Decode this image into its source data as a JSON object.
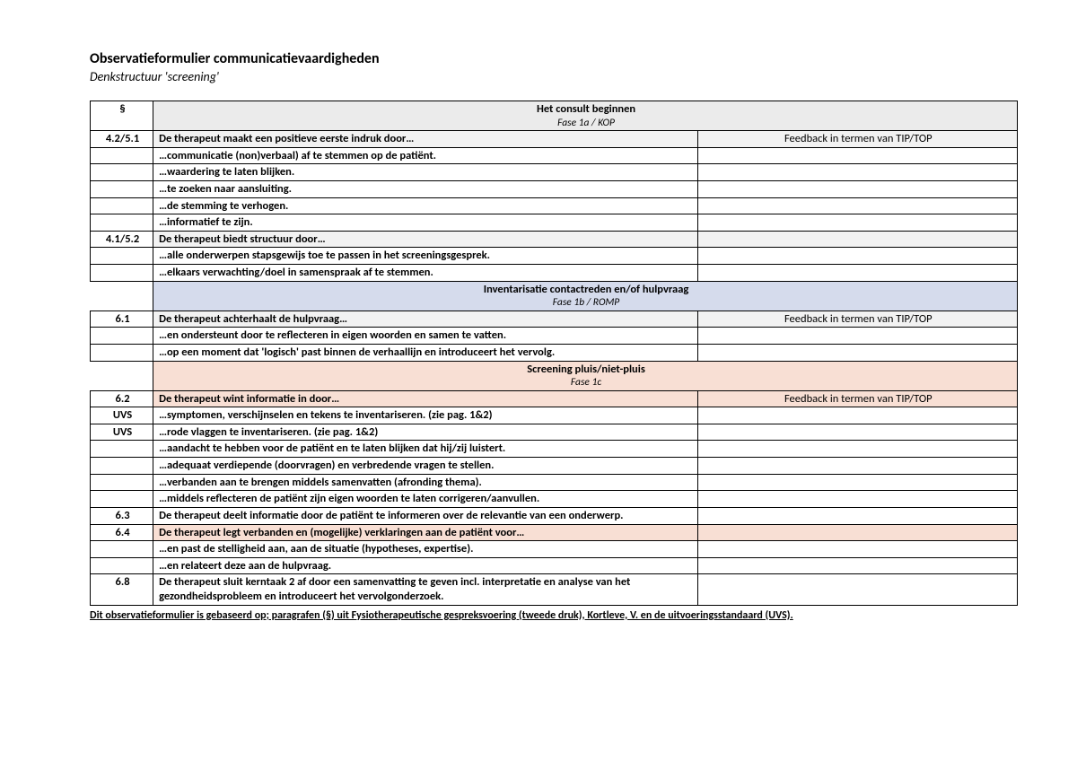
{
  "header": {
    "title": "Observatieformulier communicatievaardigheden",
    "subtitle": "Denkstructuur 'screening'"
  },
  "symbol": "§",
  "colors": {
    "section1_bg": "#ebebeb",
    "section2_bg": "#d5dbec",
    "section3_bg": "#f8dfd4",
    "row_hl_bg": "#f8dfd4",
    "grey_bg": "#f2f2f2"
  },
  "fb_header": "Feedback in termen van TIP/TOP",
  "sections": [
    {
      "title": "Het consult beginnen",
      "sub": "Fase 1a / KOP"
    },
    {
      "title": "Inventarisatie contactreden en/of hulpvraag",
      "sub": "Fase 1b / ROMP"
    },
    {
      "title": "Screening pluis/niet-pluis",
      "sub": "Fase 1c"
    }
  ],
  "rows": {
    "r1": {
      "code": "4.2/5.1",
      "text": "De therapeut maakt een positieve eerste indruk door…"
    },
    "r2": {
      "text": "…communicatie (non)verbaal) af te stemmen op de patiënt."
    },
    "r3": {
      "text": "…waardering te laten blijken."
    },
    "r4": {
      "text": "…te zoeken naar aansluiting."
    },
    "r5": {
      "text": "…de stemming te verhogen."
    },
    "r6": {
      "text": "…informatief te zijn."
    },
    "r7": {
      "code": "4.1/5.2",
      "text": "De therapeut biedt structuur door…"
    },
    "r8": {
      "text": "…alle onderwerpen stapsgewijs toe te passen in het screeningsgesprek."
    },
    "r9": {
      "text": "…elkaars verwachting/doel in samenspraak af te stemmen."
    },
    "r10": {
      "code": "6.1",
      "text": "De therapeut achterhaalt de hulpvraag…"
    },
    "r11": {
      "text": "…en ondersteunt door te reflecteren in eigen woorden en samen te vatten."
    },
    "r12": {
      "text": "…op een moment dat 'logisch' past binnen de verhaallijn en introduceert het vervolg."
    },
    "r13": {
      "code": "6.2",
      "text": "De therapeut wint informatie in door…"
    },
    "r14": {
      "code": "UVS",
      "text": "…symptomen, verschijnselen en tekens te inventariseren. (zie pag. 1&2)"
    },
    "r15": {
      "code": "UVS",
      "text": "…rode vlaggen te inventariseren. (zie pag. 1&2)"
    },
    "r16": {
      "text": "…aandacht te hebben voor de patiënt en te laten blijken dat hij/zij luistert."
    },
    "r17": {
      "text": "…adequaat verdiepende (doorvragen) en verbredende vragen te stellen."
    },
    "r18": {
      "text": "…verbanden aan te brengen middels samenvatten (afronding thema)."
    },
    "r19": {
      "text": "…middels reflecteren de patiënt zijn eigen woorden te laten corrigeren/aanvullen."
    },
    "r20": {
      "code": "6.3",
      "text": "De therapeut deelt informatie door de patiënt te informeren over de relevantie van een onderwerp."
    },
    "r21": {
      "code": "6.4",
      "text": "De therapeut legt verbanden en (mogelijke) verklaringen aan de patiënt voor…"
    },
    "r22": {
      "text": "…en past de stelligheid aan, aan de situatie (hypotheses, expertise)."
    },
    "r23": {
      "text": "…en relateert deze aan de hulpvraag."
    },
    "r24": {
      "code": "6.8",
      "text": "De therapeut sluit kerntaak 2 af door een samenvatting te geven incl. interpretatie en analyse van het gezondheidsprobleem en introduceert het vervolgonderzoek."
    }
  },
  "footer": "Dit observatieformulier is gebaseerd op; paragrafen (§) uit Fysiotherapeutische gespreksvoering (tweede druk), Kortleve, V. en de uitvoeringsstandaard (UVS)."
}
